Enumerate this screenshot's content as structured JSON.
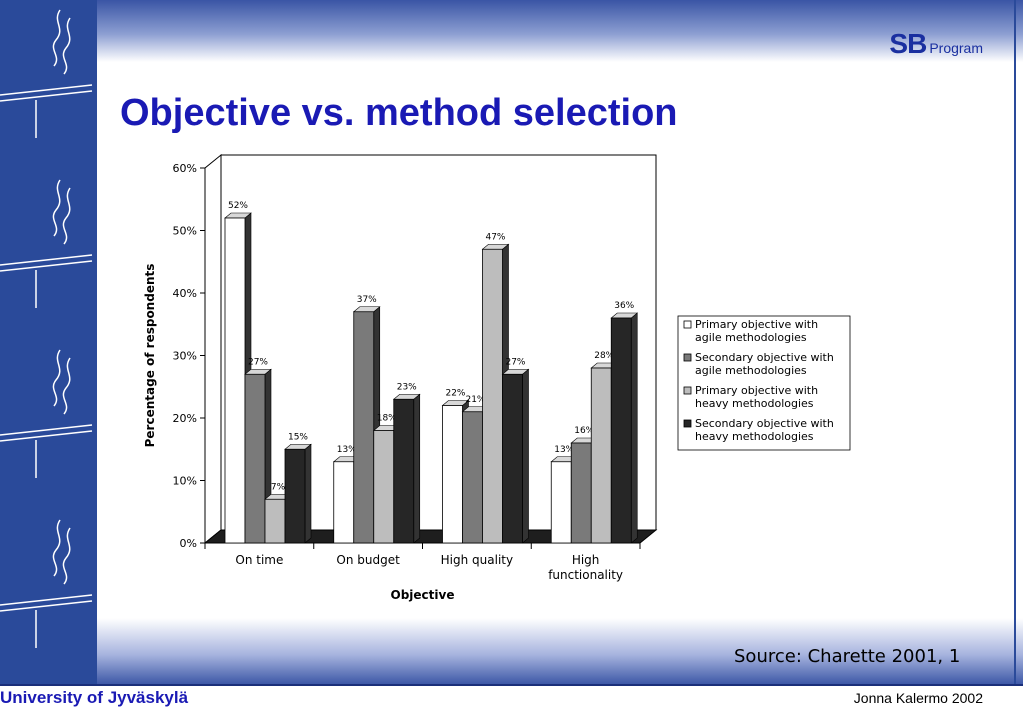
{
  "header": {
    "title": "Objective vs. method selection",
    "brand_sb": "SB",
    "brand_program": "Program"
  },
  "footer": {
    "source": "Source: Charette 2001, 1",
    "university": "University of Jyväskylä",
    "author": "Jonna Kalermo 2002"
  },
  "colors": {
    "sidebar": "#2a4a9a",
    "title": "#1a1ab4",
    "series": [
      "#ffffff",
      "#7a7a7a",
      "#bdbdbd",
      "#262626"
    ]
  },
  "decoration": {
    "sidebar_icon": "stylized-flame-torch-icon"
  },
  "chart_data": {
    "type": "bar",
    "categories": [
      "On time",
      "On budget",
      "High quality",
      "High functionality"
    ],
    "category_lines": [
      [
        "On time"
      ],
      [
        "On budget"
      ],
      [
        "High quality"
      ],
      [
        "High",
        "functionality"
      ]
    ],
    "series": [
      {
        "name": "Primary objective with agile methodologies",
        "label_lines": [
          "Primary objective with",
          "agile methodologies"
        ],
        "values": [
          52,
          13,
          22,
          13
        ],
        "labels": [
          "52%",
          "13%",
          "22%",
          "13%"
        ]
      },
      {
        "name": "Secondary objective with agile methodologies",
        "label_lines": [
          "Secondary objective with",
          "agile methodologies"
        ],
        "values": [
          27,
          37,
          21,
          16
        ],
        "labels": [
          "27%",
          "37%",
          "21%",
          "16%"
        ]
      },
      {
        "name": "Primary objective with heavy methodologies",
        "label_lines": [
          "Primary objective with",
          "heavy methodologies"
        ],
        "values": [
          7,
          18,
          47,
          28
        ],
        "labels": [
          "7%",
          "18%",
          "47%",
          "28%"
        ]
      },
      {
        "name": "Secondary objective with heavy methodologies",
        "label_lines": [
          "Secondary objective with",
          "heavy methodologies"
        ],
        "values": [
          15,
          23,
          27,
          36
        ],
        "labels": [
          "15%",
          "23%",
          "27%",
          "36%"
        ]
      }
    ],
    "ylabel": "Percentage of respondents",
    "xlabel": "Objective",
    "yticks": [
      "0%",
      "10%",
      "20%",
      "30%",
      "40%",
      "50%",
      "60%"
    ],
    "ylim": [
      0,
      60
    ],
    "three_d": true,
    "legend_position": "right"
  }
}
